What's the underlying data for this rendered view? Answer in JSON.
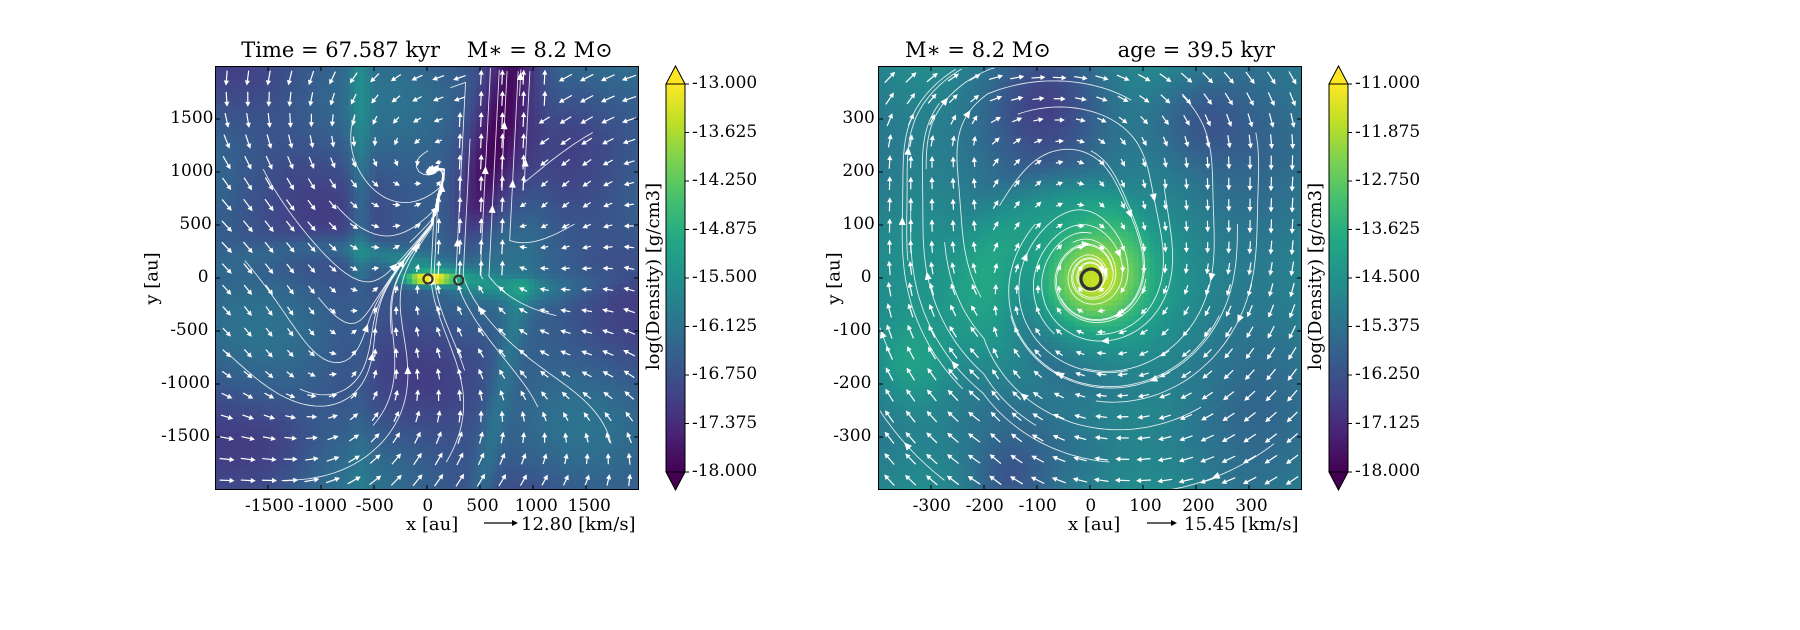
{
  "chart_data": [
    {
      "type": "heatmap",
      "title": "Time = 67.587 kyr    M$_*$ = 8.2 M$_\\odot$",
      "title_display": "Time = 67.587 kyr    M∗ = 8.2 M⊙",
      "xlabel": "x [au]",
      "ylabel": "y [au]",
      "xlim": [
        -2000,
        2000
      ],
      "ylim": [
        -2000,
        2000
      ],
      "xticks": [
        -1500,
        -1000,
        -500,
        0,
        500,
        1000,
        1500
      ],
      "xtick_labels": [
        "-1500",
        "-1000",
        "-500",
        "0",
        "500",
        "1000",
        "1500"
      ],
      "yticks": [
        -1500,
        -1000,
        -500,
        0,
        500,
        1000,
        1500
      ],
      "ytick_labels": [
        "-1500",
        "-1000",
        "-500",
        "0",
        "500",
        "1000",
        "1500"
      ],
      "colorbar": {
        "label": "log(Density) [g/cm3]",
        "min": -18.0,
        "max": -13.0,
        "ticks": [
          "-13.000",
          "-13.625",
          "-14.250",
          "-14.875",
          "-15.500",
          "-16.125",
          "-16.750",
          "-17.375",
          "-18.000"
        ],
        "colormap": "viridis"
      },
      "vector_key": "12.80 [km/s]",
      "stars": [
        {
          "x": 0,
          "y": 0
        },
        {
          "x": 290,
          "y": -10
        }
      ],
      "overlays": [
        "streamlines",
        "velocity-arrows"
      ]
    },
    {
      "type": "heatmap",
      "title": "M$_*$ = 8.2 M$_\\odot$          age = 39.5 kyr",
      "title_display": "M∗ = 8.2 M⊙          age = 39.5 kyr",
      "xlabel": "x [au]",
      "ylabel": "y [au]",
      "xlim": [
        -400,
        400
      ],
      "ylim": [
        -400,
        400
      ],
      "xticks": [
        -300,
        -200,
        -100,
        0,
        100,
        200,
        300
      ],
      "xtick_labels": [
        "-300",
        "-200",
        "-100",
        "0",
        "100",
        "200",
        "300"
      ],
      "yticks": [
        -300,
        -200,
        -100,
        0,
        100,
        200,
        300
      ],
      "ytick_labels": [
        "-300",
        "-200",
        "-100",
        "0",
        "100",
        "200",
        "300"
      ],
      "colorbar": {
        "label": "log(Density) [g/cm3]",
        "min": -18.0,
        "max": -11.0,
        "ticks": [
          "-11.000",
          "-11.875",
          "-12.750",
          "-13.625",
          "-14.500",
          "-15.375",
          "-16.250",
          "-17.125",
          "-18.000"
        ],
        "colormap": "viridis"
      },
      "vector_key": "15.45 [km/s]",
      "stars": [
        {
          "x": 0,
          "y": 0
        }
      ],
      "overlays": [
        "streamlines",
        "velocity-arrows"
      ]
    }
  ]
}
